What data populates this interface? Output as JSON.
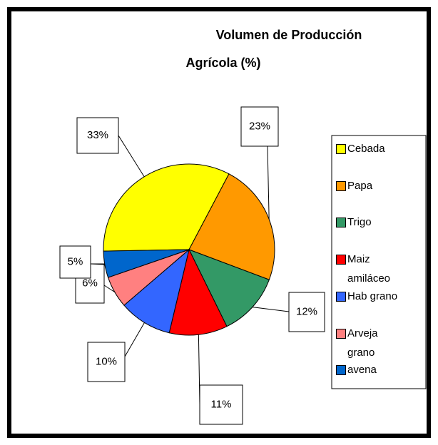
{
  "chart_data": {
    "type": "pie",
    "title": [
      "Volumen de Producción",
      "Agrícola (%)"
    ],
    "categories": [
      "Cebada",
      "Papa",
      "Trigo",
      "Maiz amiláceo",
      "Hab grano",
      "Arveja grano",
      "avena"
    ],
    "values": [
      33,
      23,
      12,
      11,
      10,
      6,
      5
    ],
    "value_labels": [
      "33%",
      "23%",
      "12%",
      "11%",
      "10%",
      "6%",
      "5%"
    ],
    "colors": [
      "#ffff00",
      "#ff9900",
      "#339966",
      "#ff0000",
      "#3366ff",
      "#ff8080",
      "#0066cc"
    ]
  }
}
